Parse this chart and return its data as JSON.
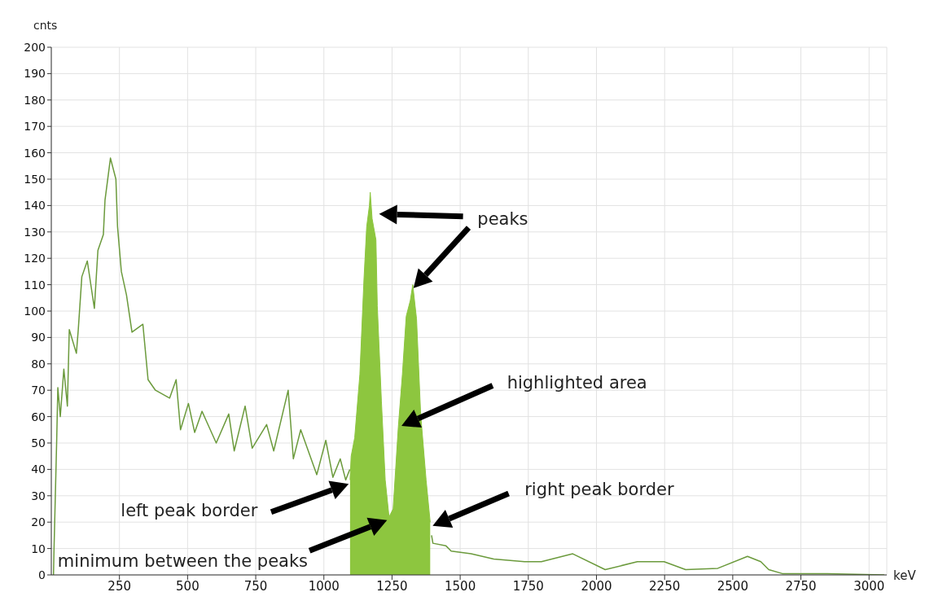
{
  "chart_data": {
    "type": "line",
    "xlabel": "keV",
    "ylabel": "cnts",
    "xlim": [
      0,
      3065
    ],
    "ylim": [
      0,
      200
    ],
    "xticks": [
      250,
      500,
      750,
      1000,
      1250,
      1500,
      1750,
      2000,
      2250,
      2500,
      2750,
      3000
    ],
    "yticks": [
      0,
      10,
      20,
      30,
      40,
      50,
      60,
      70,
      80,
      90,
      100,
      110,
      120,
      130,
      140,
      150,
      160,
      170,
      180,
      190,
      200
    ],
    "grid": true,
    "marker": "none",
    "series": [
      {
        "color": "#6b9a3c",
        "x": [
          8,
          10,
          16,
          20,
          24,
          33,
          46,
          59,
          66,
          92,
          99,
          112,
          132,
          158,
          171,
          191,
          197,
          217,
          237,
          243,
          257,
          276,
          296,
          336,
          355,
          382,
          434,
          458,
          474,
          503,
          526,
          553,
          605,
          651,
          671,
          711,
          737,
          790,
          816,
          869,
          888,
          915,
          974,
          1007,
          1033,
          1060,
          1080,
          1095,
          1250,
          1395,
          1400,
          1448,
          1467,
          1540,
          1623,
          1736,
          1798,
          1913,
          2032,
          2150,
          2248,
          2327,
          2445,
          2554,
          2603,
          2632,
          2682,
          2820,
          3056
        ],
        "values": [
          0,
          10,
          35,
          52,
          71,
          60,
          78,
          64,
          93,
          84,
          93,
          113,
          119,
          101,
          123,
          129,
          142,
          158,
          150,
          132,
          115,
          106,
          92,
          95,
          74,
          70,
          67,
          74,
          55,
          65,
          54,
          62,
          50,
          61,
          47,
          64,
          48,
          57,
          47,
          70,
          44,
          55,
          38,
          51,
          37,
          44,
          36,
          40,
          null,
          15,
          12,
          11,
          9,
          8,
          6,
          5,
          5,
          8,
          2,
          5,
          5,
          2,
          2.5,
          7,
          5,
          2,
          0.5,
          0.5,
          0
        ]
      },
      {
        "type": "area",
        "color": "#8dc63f",
        "x": [
          1096,
          1100,
          1113,
          1132,
          1147,
          1157,
          1167,
          1170,
          1177,
          1191,
          1196,
          1211,
          1225,
          1239,
          1254,
          1273,
          1288,
          1302,
          1317,
          1326,
          1340,
          1355,
          1375,
          1390
        ],
        "values": [
          36,
          45,
          52,
          76,
          112,
          132,
          140,
          145,
          135,
          127,
          102,
          66,
          36,
          22,
          25,
          56,
          76,
          98,
          104,
          110,
          97,
          61,
          36,
          20
        ]
      }
    ],
    "annotations": [
      "peaks",
      "highlighted area",
      "left peak border",
      "minimum between the peaks",
      "right peak border"
    ]
  }
}
